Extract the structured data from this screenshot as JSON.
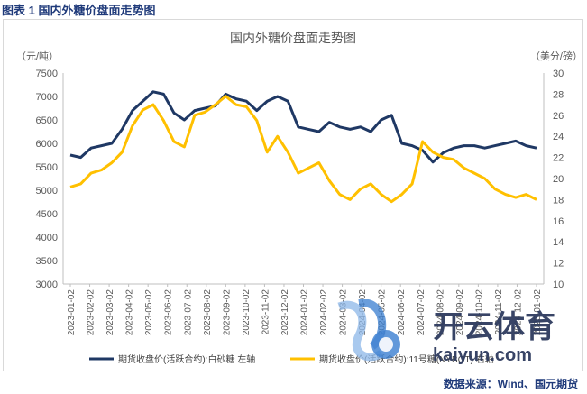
{
  "caption": "图表 1  国内外糖价盘面走势图",
  "source": "数据来源：Wind、国元期货",
  "watermark": {
    "primary": "开云体育",
    "secondary": "kaiyun.com"
  },
  "colors": {
    "series1": "#1f3864",
    "series2": "#ffc000",
    "axis": "#d9d9d9",
    "text": "#595959"
  },
  "chart_data": {
    "type": "line",
    "title": "国内外糖价盘面走势图",
    "y_left": {
      "label": "（元/吨）",
      "min": 3000,
      "max": 7500,
      "ticks": [
        3000,
        3500,
        4000,
        4500,
        5000,
        5500,
        6000,
        6500,
        7000,
        7500
      ]
    },
    "y_right": {
      "label": "（美分/磅）",
      "min": 10,
      "max": 30,
      "ticks": [
        10,
        12,
        14,
        16,
        18,
        20,
        22,
        24,
        26,
        28,
        30
      ]
    },
    "x_labels": [
      "2023-01-02",
      "2023-02-02",
      "2023-03-02",
      "2023-04-02",
      "2023-05-02",
      "2023-06-02",
      "2023-07-02",
      "2023-08-02",
      "2023-09-02",
      "2023-10-02",
      "2023-11-02",
      "2023-12-02",
      "2024-01-02",
      "2024-02-02",
      "2024-03-02",
      "2024-04-02",
      "2024-05-02",
      "2024-06-02",
      "2024-07-02",
      "2024-08-02",
      "2024-09-02",
      "2024-10-02",
      "2024-11-02",
      "2024-12-02",
      "2025-01-02"
    ],
    "grid": false,
    "legend_position": "bottom",
    "series": [
      {
        "name": "期货收盘价(活跃合约):白砂糖  左轴",
        "axis": "left",
        "values": [
          5750,
          5700,
          5900,
          5950,
          6000,
          6300,
          6700,
          6900,
          7100,
          7050,
          6650,
          6500,
          6700,
          6750,
          6800,
          7050,
          6950,
          6900,
          6700,
          6900,
          7000,
          6900,
          6350,
          6300,
          6250,
          6450,
          6350,
          6300,
          6350,
          6250,
          6500,
          6600,
          6000,
          5950,
          5850,
          5600,
          5800,
          5900,
          5950,
          5950,
          5900,
          5950,
          6000,
          6050,
          5950,
          5900
        ]
      },
      {
        "name": "期货收盘价(活跃合约):11号糖(NYBOT) 右轴",
        "axis": "right",
        "values": [
          19.2,
          19.5,
          20.5,
          20.8,
          21.5,
          22.5,
          25.0,
          26.5,
          27.0,
          25.5,
          23.5,
          23.0,
          26.0,
          26.3,
          27.0,
          27.8,
          27.0,
          26.8,
          25.5,
          22.5,
          24.0,
          22.5,
          20.5,
          21.0,
          21.5,
          19.8,
          18.5,
          18.0,
          19.0,
          19.5,
          18.5,
          17.8,
          18.5,
          19.5,
          23.5,
          22.5,
          22.0,
          21.8,
          21.0,
          20.5,
          20.0,
          19.0,
          18.5,
          18.2,
          18.5,
          18.0
        ]
      }
    ]
  }
}
